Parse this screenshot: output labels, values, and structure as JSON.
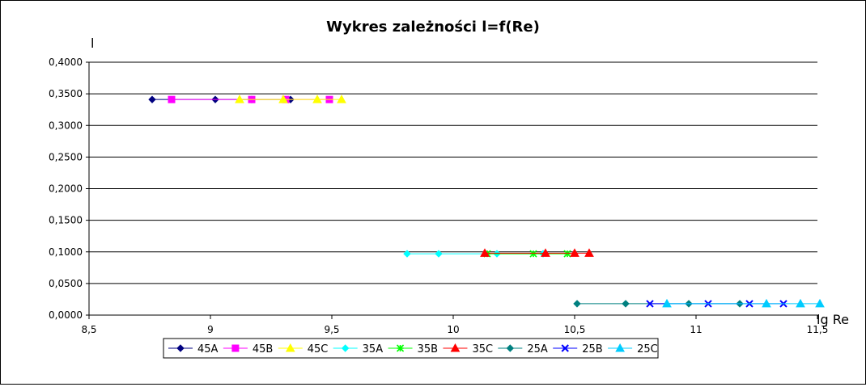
{
  "chart_data": {
    "type": "line",
    "title": "Wykres zależności l=f(Re)",
    "xlabel": "lg Re",
    "ylabel": "l",
    "xlim": [
      8.5,
      11.5
    ],
    "ylim": [
      0,
      0.4
    ],
    "x_ticks": [
      "8,5",
      "9",
      "9,5",
      "10",
      "10,5",
      "11",
      "11,5"
    ],
    "y_ticks": [
      "0,0000",
      "0,0500",
      "0,1000",
      "0,1500",
      "0,2000",
      "0,2500",
      "0,3000",
      "0,3500",
      "0,4000"
    ],
    "grid": "horizontal",
    "legend": "bottom",
    "series": [
      {
        "name": "45A",
        "color": "#000080",
        "marker": "diamond",
        "x": [
          8.76,
          9.02,
          9.17,
          9.33
        ],
        "y": [
          0.341,
          0.341,
          0.341,
          0.341
        ]
      },
      {
        "name": "45B",
        "color": "#ff00ff",
        "marker": "square",
        "x": [
          8.84,
          9.17,
          9.31,
          9.49
        ],
        "y": [
          0.341,
          0.341,
          0.341,
          0.341
        ]
      },
      {
        "name": "45C",
        "color": "#ffff00",
        "marker": "triangle",
        "x": [
          9.12,
          9.3,
          9.44,
          9.54
        ],
        "y": [
          0.341,
          0.341,
          0.341,
          0.341
        ]
      },
      {
        "name": "35A",
        "color": "#00ffff",
        "marker": "diamond",
        "x": [
          9.81,
          9.94,
          10.18,
          10.37
        ],
        "y": [
          0.097,
          0.097,
          0.097,
          0.097
        ]
      },
      {
        "name": "35B",
        "color": "#00ff00",
        "marker": "asterisk",
        "x": [
          10.14,
          10.33,
          10.47
        ],
        "y": [
          0.097,
          0.097,
          0.097
        ]
      },
      {
        "name": "35C",
        "color": "#ff0000",
        "marker": "triangle",
        "x": [
          10.13,
          10.38,
          10.5,
          10.56
        ],
        "y": [
          0.098,
          0.098,
          0.098,
          0.098
        ]
      },
      {
        "name": "25A",
        "color": "#008080",
        "marker": "diamond",
        "x": [
          10.51,
          10.71,
          10.97,
          11.18
        ],
        "y": [
          0.018,
          0.018,
          0.018,
          0.018
        ]
      },
      {
        "name": "25B",
        "color": "#0000ff",
        "marker": "star",
        "x": [
          10.81,
          11.05,
          11.22,
          11.36
        ],
        "y": [
          0.018,
          0.018,
          0.018,
          0.018
        ]
      },
      {
        "name": "25C",
        "color": "#00ccff",
        "marker": "triangle",
        "x": [
          10.88,
          11.29,
          11.43,
          11.51
        ],
        "y": [
          0.018,
          0.018,
          0.018,
          0.018
        ]
      }
    ]
  }
}
